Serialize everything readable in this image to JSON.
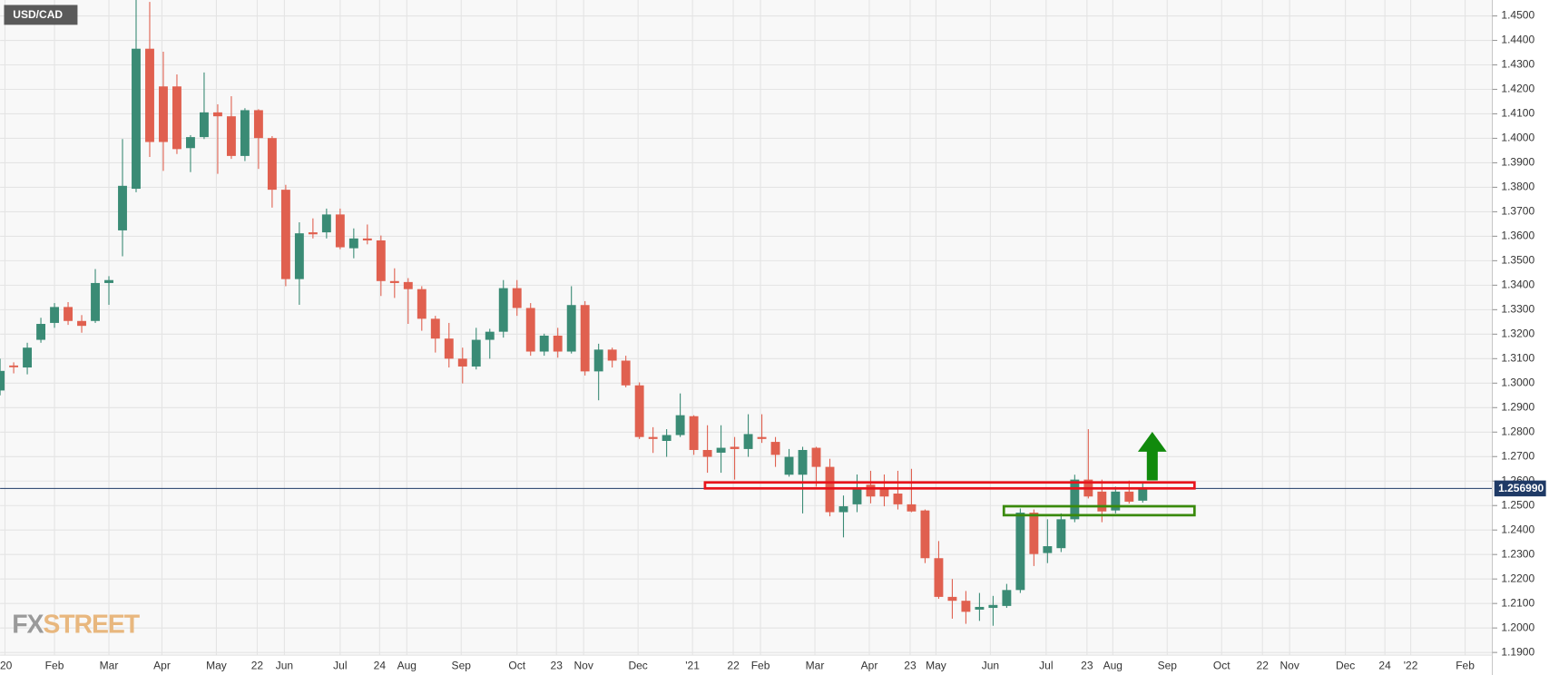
{
  "chart_data": {
    "type": "candlestick",
    "title": "USD/CAD",
    "watermark": [
      "FX",
      "STREET"
    ],
    "up_color": "#3a8b75",
    "down_color": "#e0604f",
    "grid": true,
    "open": [
      1.297,
      1.3072,
      1.3064,
      1.3177,
      1.3246,
      1.3311,
      1.3254,
      1.3254,
      1.3409,
      1.3624,
      1.3794,
      1.4366,
      1.4212,
      1.4212,
      1.396,
      1.4005,
      1.4106,
      1.409,
      1.3928,
      1.4115,
      1.4001,
      1.379,
      1.3425,
      1.3616,
      1.3616,
      1.3689,
      1.3551,
      1.3591,
      1.3583,
      1.3417,
      1.3413,
      1.3384,
      1.3263,
      1.3182,
      1.31,
      1.3068,
      1.3177,
      1.321,
      1.3388,
      1.3307,
      1.3129,
      1.3194,
      1.3129,
      1.3319,
      1.3048,
      1.3137,
      1.3092,
      1.2991,
      1.278,
      1.2764,
      1.2788,
      1.2865,
      1.2727,
      1.2716,
      1.274,
      1.2731,
      1.278,
      1.276,
      1.2626,
      1.2626,
      1.2736,
      1.2658,
      1.2473,
      1.2505,
      1.2585,
      1.2566,
      1.2549,
      1.2505,
      1.248,
      1.2285,
      1.2127,
      1.2111,
      1.2075,
      1.2082,
      1.209,
      1.2155,
      1.2471,
      1.2306,
      1.2326,
      1.2444,
      1.2606,
      1.2557,
      1.248,
      1.2557,
      1.252
    ],
    "high": [
      1.31,
      1.3085,
      1.3165,
      1.3267,
      1.3327,
      1.3331,
      1.3278,
      1.3466,
      1.3437,
      1.3997,
      1.4565,
      1.4557,
      1.4354,
      1.4261,
      1.4013,
      1.4269,
      1.4139,
      1.4172,
      1.4123,
      1.4119,
      1.4009,
      1.381,
      1.3657,
      1.3673,
      1.3713,
      1.3713,
      1.3632,
      1.3648,
      1.3603,
      1.3469,
      1.3429,
      1.3396,
      1.3275,
      1.3246,
      1.3145,
      1.3226,
      1.3222,
      1.3421,
      1.3421,
      1.3327,
      1.3202,
      1.3226,
      1.3396,
      1.3335,
      1.3161,
      1.3145,
      1.3112,
      1.3003,
      1.282,
      1.2812,
      1.2958,
      1.2869,
      1.2828,
      1.2828,
      1.278,
      1.2873,
      1.2873,
      1.278,
      1.2731,
      1.274,
      1.274,
      1.2691,
      1.2541,
      1.2627,
      1.2642,
      1.2627,
      1.2642,
      1.265,
      1.2484,
      1.2355,
      1.22,
      1.2151,
      1.2143,
      1.2131,
      1.218,
      1.2488,
      1.2484,
      1.2444,
      1.2468,
      1.2626,
      1.2812,
      1.2606,
      1.2577,
      1.2602,
      1.2598
    ],
    "low": [
      1.295,
      1.304,
      1.3036,
      1.3165,
      1.3226,
      1.3238,
      1.3206,
      1.3246,
      1.332,
      1.3518,
      1.378,
      1.3924,
      1.3867,
      1.3936,
      1.3862,
      1.3997,
      1.3855,
      1.3916,
      1.3907,
      1.3875,
      1.3717,
      1.3396,
      1.332,
      1.3591,
      1.3591,
      1.3547,
      1.351,
      1.3567,
      1.3356,
      1.3348,
      1.3242,
      1.3214,
      1.3125,
      1.3064,
      1.2999,
      1.3056,
      1.31,
      1.3186,
      1.3275,
      1.3112,
      1.3112,
      1.3104,
      1.3121,
      1.3031,
      1.293,
      1.3064,
      1.2983,
      1.2772,
      1.2715,
      1.2699,
      1.278,
      1.2707,
      1.2634,
      1.2634,
      1.2606,
      1.2699,
      1.2756,
      1.2658,
      1.2618,
      1.2468,
      1.2577,
      1.2456,
      1.237,
      1.2473,
      1.2509,
      1.2497,
      1.2484,
      1.2473,
      1.2265,
      1.2119,
      1.2038,
      1.2017,
      1.2029,
      1.2009,
      1.2082,
      1.2143,
      1.2253,
      1.2265,
      1.231,
      1.2432,
      1.2529,
      1.2432,
      1.2468,
      1.2508,
      1.2512
    ],
    "close": [
      1.305,
      1.3065,
      1.3145,
      1.3242,
      1.3311,
      1.3254,
      1.3234,
      1.3409,
      1.3421,
      1.3806,
      1.4366,
      1.3985,
      1.3985,
      1.3956,
      1.4005,
      1.4106,
      1.409,
      1.3928,
      1.4115,
      1.4001,
      1.379,
      1.3425,
      1.3612,
      1.3608,
      1.3689,
      1.3555,
      1.3591,
      1.3583,
      1.3417,
      1.3409,
      1.3384,
      1.3263,
      1.3182,
      1.31,
      1.3068,
      1.3177,
      1.321,
      1.3388,
      1.3307,
      1.3129,
      1.3194,
      1.3129,
      1.3319,
      1.3048,
      1.3137,
      1.3092,
      1.2991,
      1.278,
      1.2772,
      1.2788,
      1.2869,
      1.2727,
      1.2699,
      1.2736,
      1.2731,
      1.2792,
      1.2772,
      1.2707,
      1.2699,
      1.2727,
      1.2658,
      1.2473,
      1.2497,
      1.2566,
      1.2537,
      1.2537,
      1.2505,
      1.2476,
      1.2285,
      1.2127,
      1.2111,
      1.2066,
      1.2086,
      1.2094,
      1.2155,
      1.2471,
      1.2302,
      1.2334,
      1.2444,
      1.2606,
      1.2537,
      1.2476,
      1.2557,
      1.2516,
      1.257
    ],
    "last_price": {
      "value": 1.25699,
      "label": "1.256990"
    },
    "xlim": [
      0,
      109.7
    ],
    "ylim": [
      1.1889,
      1.4565
    ],
    "xticks": [
      {
        "value": 0.36,
        "label": "'20"
      },
      {
        "value": 4.0,
        "label": "Feb"
      },
      {
        "value": 8.0,
        "label": "Mar"
      },
      {
        "value": 11.9,
        "label": "Apr"
      },
      {
        "value": 15.9,
        "label": "May"
      },
      {
        "value": 18.9,
        "label": "22"
      },
      {
        "value": 20.9,
        "label": "Jun"
      },
      {
        "value": 25.0,
        "label": "Jul"
      },
      {
        "value": 27.9,
        "label": "24"
      },
      {
        "value": 29.9,
        "label": "Aug"
      },
      {
        "value": 33.9,
        "label": "Sep"
      },
      {
        "value": 38.0,
        "label": "Oct"
      },
      {
        "value": 40.9,
        "label": "23"
      },
      {
        "value": 42.9,
        "label": "Nov"
      },
      {
        "value": 46.9,
        "label": "Dec"
      },
      {
        "value": 50.9,
        "label": "'21"
      },
      {
        "value": 53.9,
        "label": "22"
      },
      {
        "value": 55.9,
        "label": "Feb"
      },
      {
        "value": 59.9,
        "label": "Mar"
      },
      {
        "value": 63.9,
        "label": "Apr"
      },
      {
        "value": 66.9,
        "label": "23"
      },
      {
        "value": 68.8,
        "label": "May"
      },
      {
        "value": 72.8,
        "label": "Jun"
      },
      {
        "value": 76.9,
        "label": "Jul"
      },
      {
        "value": 79.9,
        "label": "23"
      },
      {
        "value": 81.8,
        "label": "Aug"
      },
      {
        "value": 85.8,
        "label": "Sep"
      },
      {
        "value": 89.8,
        "label": "Oct"
      },
      {
        "value": 92.8,
        "label": "22"
      },
      {
        "value": 94.8,
        "label": "Nov"
      },
      {
        "value": 98.9,
        "label": "Dec"
      },
      {
        "value": 101.8,
        "label": "24"
      },
      {
        "value": 103.7,
        "label": "'22"
      },
      {
        "value": 107.7,
        "label": "Feb"
      }
    ],
    "yticks": [
      {
        "value": 1.19,
        "label": "1.1900"
      },
      {
        "value": 1.2,
        "label": "1.2000"
      },
      {
        "value": 1.21,
        "label": "1.2100"
      },
      {
        "value": 1.22,
        "label": "1.2200"
      },
      {
        "value": 1.23,
        "label": "1.2300"
      },
      {
        "value": 1.24,
        "label": "1.2400"
      },
      {
        "value": 1.25,
        "label": "1.2500"
      },
      {
        "value": 1.26,
        "label": "1.2600"
      },
      {
        "value": 1.27,
        "label": "1.2700"
      },
      {
        "value": 1.28,
        "label": "1.2800"
      },
      {
        "value": 1.29,
        "label": "1.2900"
      },
      {
        "value": 1.3,
        "label": "1.3000"
      },
      {
        "value": 1.31,
        "label": "1.3100"
      },
      {
        "value": 1.32,
        "label": "1.3200"
      },
      {
        "value": 1.33,
        "label": "1.3300"
      },
      {
        "value": 1.34,
        "label": "1.3400"
      },
      {
        "value": 1.35,
        "label": "1.3500"
      },
      {
        "value": 1.36,
        "label": "1.3600"
      },
      {
        "value": 1.37,
        "label": "1.3700"
      },
      {
        "value": 1.38,
        "label": "1.3800"
      },
      {
        "value": 1.39,
        "label": "1.3900"
      },
      {
        "value": 1.4,
        "label": "1.4000"
      },
      {
        "value": 1.41,
        "label": "1.4100"
      },
      {
        "value": 1.42,
        "label": "1.4200"
      },
      {
        "value": 1.43,
        "label": "1.4300"
      },
      {
        "value": 1.44,
        "label": "1.4400"
      },
      {
        "value": 1.45,
        "label": "1.4500"
      }
    ]
  }
}
